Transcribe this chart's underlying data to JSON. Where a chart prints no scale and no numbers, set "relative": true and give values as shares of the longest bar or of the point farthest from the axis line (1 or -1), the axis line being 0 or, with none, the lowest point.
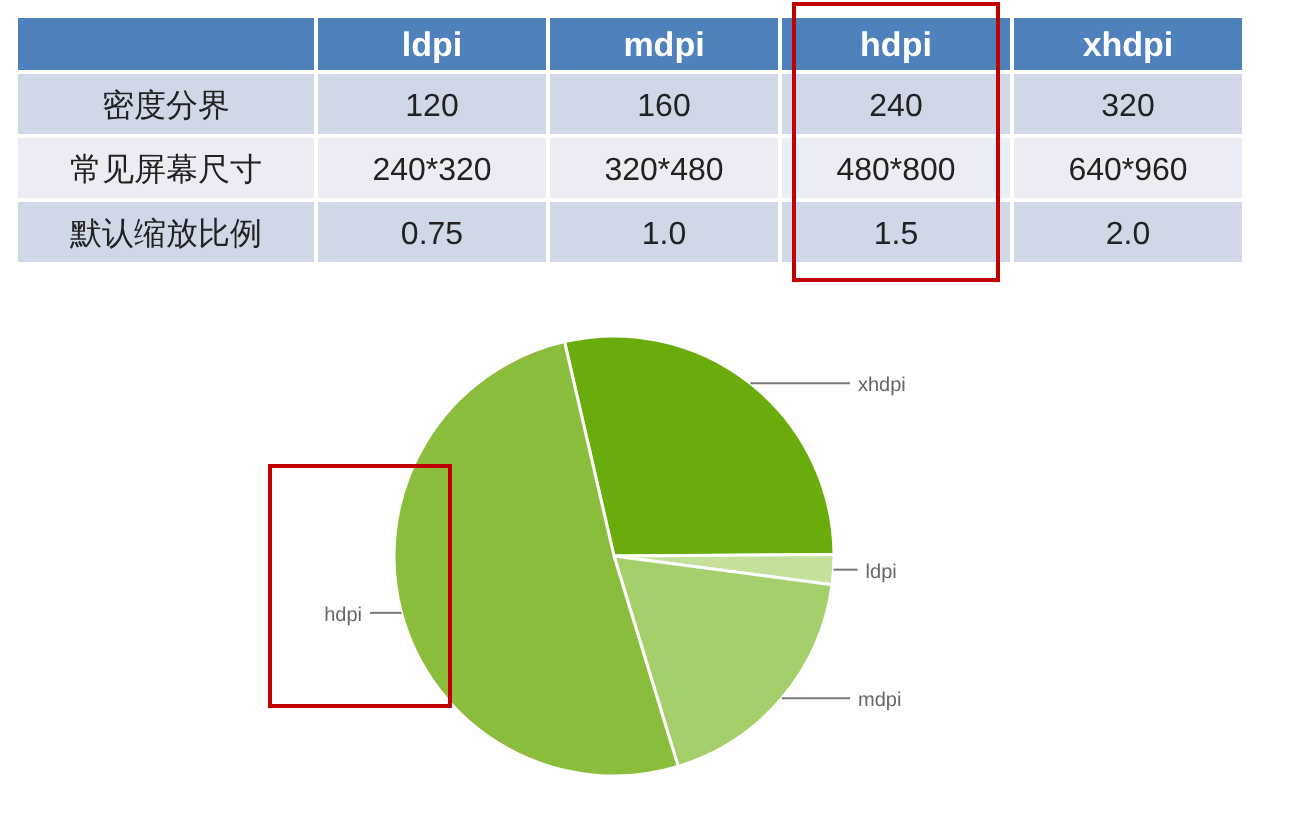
{
  "chart_data": [
    {
      "type": "other",
      "categories": [
        null,
        "ldpi",
        "mdpi",
        "hdpi",
        "xhdpi"
      ],
      "y_categories": [
        "密度分界",
        "常见屏幕尺寸",
        "默认缩放比例"
      ],
      "cell_labels": [
        [
          "120",
          "160",
          "240",
          "320"
        ],
        [
          "240*320",
          "320*480",
          "480*800",
          "640*960"
        ],
        [
          "0.75",
          "1.0",
          "1.5",
          "2.0"
        ]
      ]
    },
    {
      "type": "pie",
      "relative": true,
      "categories": [
        "xhdpi",
        "ldpi",
        "mdpi",
        "hdpi"
      ],
      "values": [
        28.5,
        2.2,
        18.2,
        51.1
      ],
      "colors": [
        "#6aac0c",
        "#c4e09a",
        "#a5cf6a",
        "#8abd3c"
      ]
    }
  ]
}
